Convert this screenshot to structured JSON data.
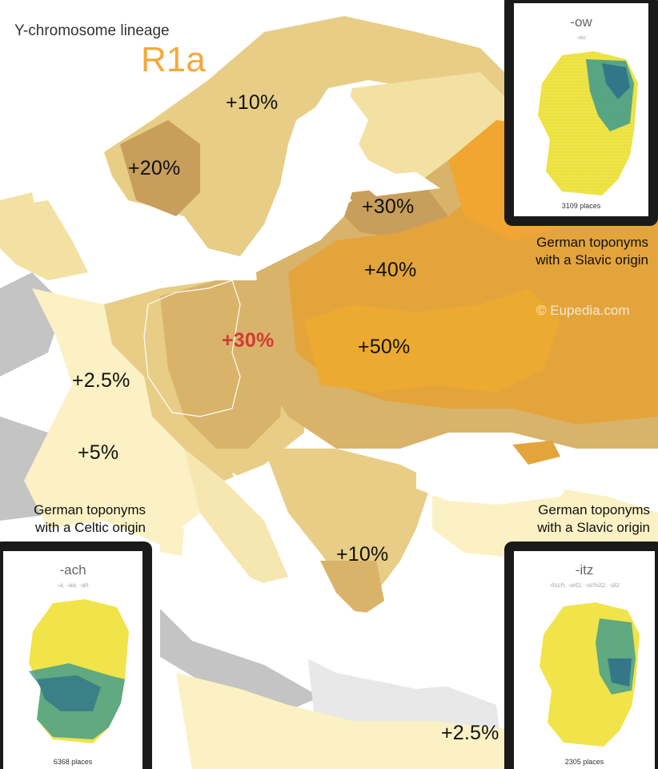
{
  "title": {
    "subtitle": "Y-chromosome lineage",
    "haplogroup": "R1a"
  },
  "watermark": "© Eupedia.com",
  "map_labels": [
    {
      "id": "scandinavia-north",
      "text": "+10%"
    },
    {
      "id": "norway",
      "text": "+20%"
    },
    {
      "id": "baltic",
      "text": "+30%"
    },
    {
      "id": "belarus",
      "text": "+40%"
    },
    {
      "id": "germany",
      "text": "+30%"
    },
    {
      "id": "ukraine",
      "text": "+50%"
    },
    {
      "id": "france",
      "text": "+2.5%"
    },
    {
      "id": "south-france",
      "text": "+5%"
    },
    {
      "id": "greece",
      "text": "+10%"
    },
    {
      "id": "north-africa",
      "text": "+2.5%"
    }
  ],
  "panels": [
    {
      "id": "ow",
      "suffix": "-ow",
      "variants": "-au",
      "places": "3109 places",
      "caption_line1": "German toponyms",
      "caption_line2": "with a Slavic origin"
    },
    {
      "id": "ach",
      "suffix": "-ach",
      "variants": "-a, -aa, -ah",
      "places": "6368 places",
      "caption_line1": "German toponyms",
      "caption_line2": "with a Celtic origin"
    },
    {
      "id": "itz",
      "suffix": "-itz",
      "variants": "-itsch, -witz, -schütz, -ütz",
      "places": "2305 places",
      "caption_line1": "German toponyms",
      "caption_line2": "with a Slavic origin"
    }
  ],
  "colors": {
    "sea": "#ffffff",
    "land_gray": "#c4c4c4",
    "pale": "#fbf1c4",
    "lvl1": "#f2e1a2",
    "lvl2": "#e7cd86",
    "lvl3": "#d9b36a",
    "lvl4": "#c89e5c",
    "lvl5": "#e4a43c",
    "lvl6": "#edaa30",
    "accent_title": "#F2A93B",
    "germany_red": "#d33b35"
  }
}
